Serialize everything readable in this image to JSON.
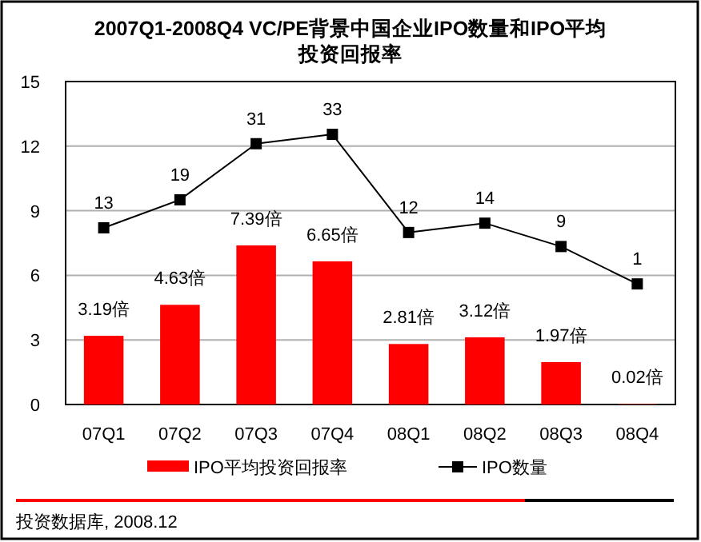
{
  "chart_data": {
    "type": "bar",
    "title": "2007Q1-2008Q4  VC/PE背景中国企业IPO数量和IPO平均投资回报率",
    "categories": [
      "07Q1",
      "07Q2",
      "07Q3",
      "07Q4",
      "08Q1",
      "08Q2",
      "08Q3",
      "08Q4"
    ],
    "series": [
      {
        "name": "IPO平均投资回报率",
        "color": "#ff0000",
        "values": [
          3.19,
          4.63,
          7.39,
          6.65,
          2.81,
          3.12,
          1.97,
          0.02
        ],
        "value_labels": [
          "3.19倍",
          "4.63倍",
          "7.39倍",
          "6.65倍",
          "2.81倍",
          "3.12倍",
          "1.97倍",
          "0.02倍"
        ]
      },
      {
        "name": "IPO数量",
        "type": "line",
        "axis": "y2",
        "color": "#000000",
        "marker": "square",
        "values": [
          13,
          19,
          31,
          33,
          12,
          14,
          9,
          1
        ],
        "value_labels": [
          "13",
          "19",
          "31",
          "33",
          "12",
          "14",
          "9",
          "1"
        ]
      }
    ],
    "ylim": [
      0,
      15
    ],
    "yticks": [
      0,
      3,
      6,
      9,
      12,
      15
    ],
    "y2lim": [
      -24.8,
      44.3
    ],
    "grid": "y",
    "legend": "bottom",
    "annotations": [
      "投资数据库, 2008.12"
    ]
  }
}
